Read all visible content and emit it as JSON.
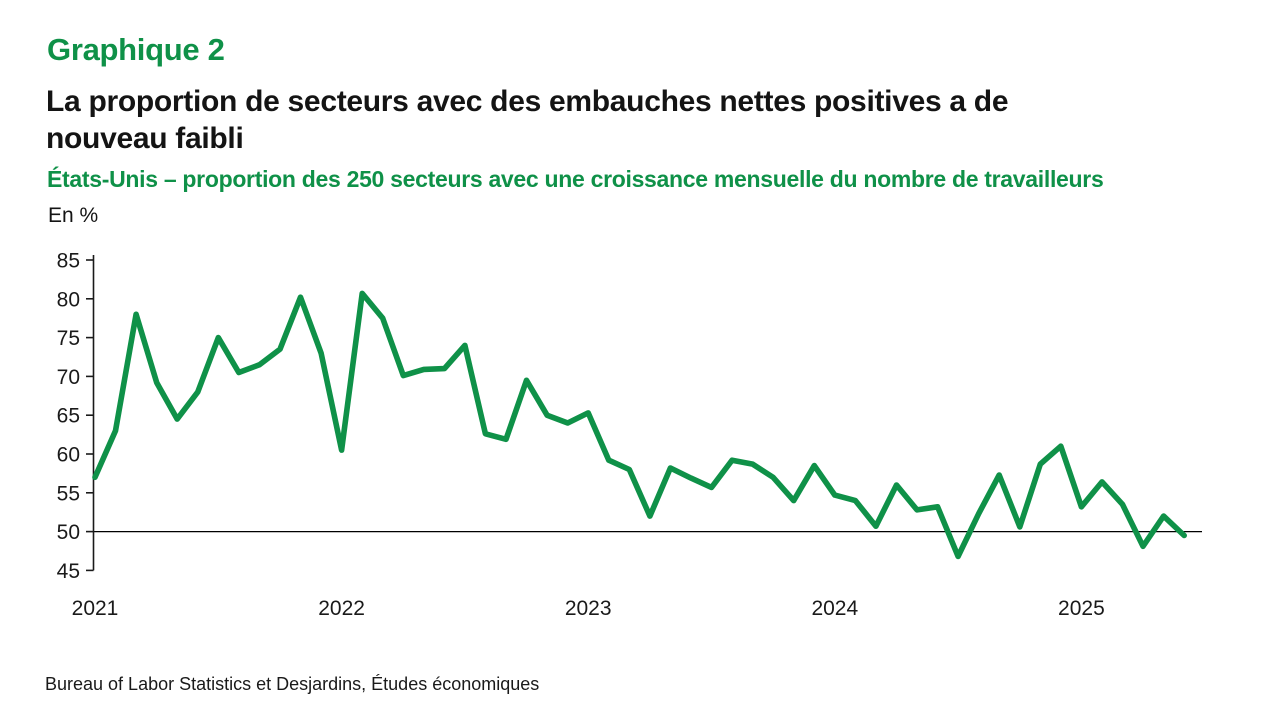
{
  "header": {
    "chart_label": "Graphique 2",
    "title_lines": {
      "0": "La proportion de secteurs avec des embauches nettes positives a de",
      "1": "nouveau faibli"
    },
    "subtitle": "États-Unis – proportion des 250 secteurs avec une croissance mensuelle du nombre de travailleurs",
    "axis_unit": "En %"
  },
  "footer": {
    "source": "Bureau of Labor Statistics et Desjardins, Études économiques"
  },
  "colors": {
    "line_green": "#0F9148",
    "axis_black": "#1a1a1a",
    "reference_black": "#000000"
  },
  "chart_data": {
    "type": "line",
    "title": "La proportion de secteurs avec des embauches nettes positives a de nouveau faibli",
    "subtitle": "États-Unis – proportion des 250 secteurs avec une croissance mensuelle du nombre de travailleurs",
    "ylabel": "En %",
    "ylim": [
      45,
      85
    ],
    "yticks": [
      45,
      50,
      55,
      60,
      65,
      70,
      75,
      80,
      85
    ],
    "reference_line_y": 50,
    "grid": "off",
    "legend": "none",
    "x_start": "2021-01",
    "frequency": "monthly",
    "x_tick_labels": [
      "2021",
      "2022",
      "2023",
      "2024",
      "2025"
    ],
    "months_per_tick": 12,
    "series": [
      {
        "name": "Proportion des 250 secteurs avec une croissance mensuelle du nombre de travailleurs (%)",
        "values": [
          57.0,
          63.0,
          78.0,
          69.2,
          64.5,
          68.0,
          75.0,
          70.5,
          71.5,
          73.5,
          80.2,
          73.0,
          60.5,
          80.7,
          77.5,
          70.1,
          70.9,
          71.0,
          74.0,
          62.6,
          61.9,
          69.5,
          65.0,
          64.0,
          65.3,
          59.2,
          58.0,
          52.0,
          58.2,
          56.9,
          55.7,
          59.2,
          58.7,
          57.0,
          54.0,
          58.5,
          54.7,
          54.0,
          50.7,
          56.0,
          52.8,
          53.2,
          46.8,
          52.3,
          57.3,
          50.6,
          58.7,
          61.0,
          53.2,
          56.4,
          53.5,
          48.1,
          52.0,
          49.5
        ]
      }
    ]
  }
}
